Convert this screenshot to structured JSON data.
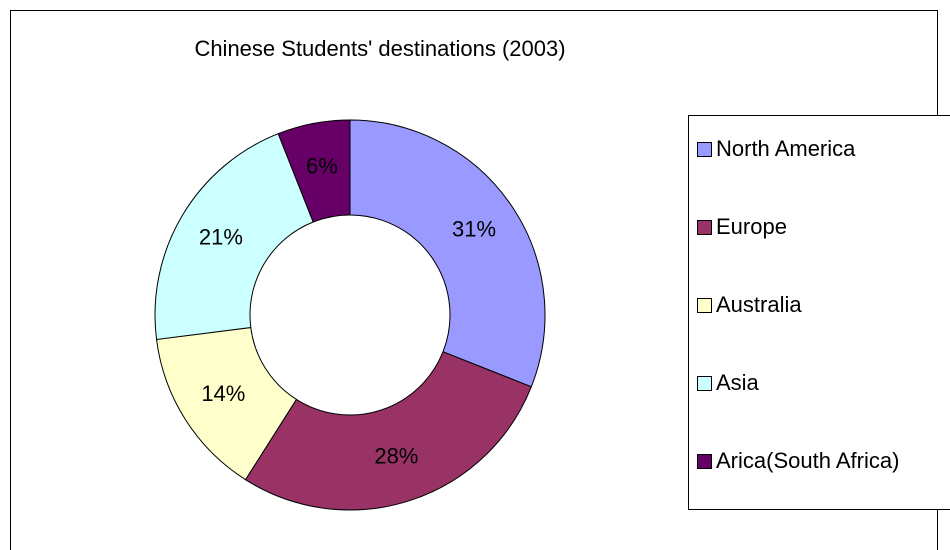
{
  "chart_data": {
    "type": "pie",
    "title": "Chinese Students' destinations (2003)",
    "categories": [
      "North America",
      "Europe",
      "Australia",
      "Asia",
      "Arica(South Africa)"
    ],
    "values": [
      31,
      28,
      14,
      21,
      6
    ],
    "value_labels": [
      "31%",
      "28%",
      "14%",
      "21%",
      "6%"
    ],
    "colors": [
      "#9999ff",
      "#993366",
      "#ffffcc",
      "#ccffff",
      "#660066"
    ],
    "donut": true
  }
}
